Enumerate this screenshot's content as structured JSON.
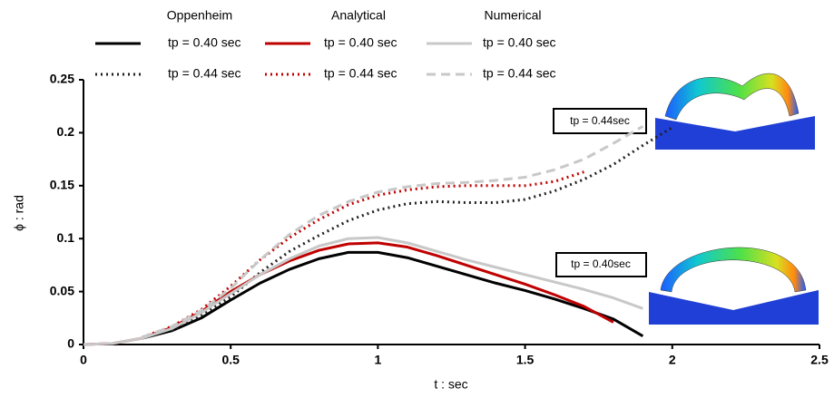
{
  "chart_data": {
    "type": "line",
    "x_label": "t : sec",
    "y_label": "ϕ : rad",
    "legend_columns": [
      "Oppenheim",
      "Analytical",
      "Numerical"
    ],
    "x": [
      0,
      0.1,
      0.2,
      0.3,
      0.4,
      0.5,
      0.6,
      0.7,
      0.8,
      0.9,
      1.0,
      1.1,
      1.2,
      1.3,
      1.4,
      1.5,
      1.6,
      1.7,
      1.8,
      1.9,
      2.0
    ],
    "series": [
      {
        "name": "tp = 0.40 sec",
        "color": "#000000",
        "style": "solid",
        "values": [
          null,
          null,
          0.006,
          0.013,
          0.025,
          0.042,
          0.058,
          0.071,
          0.081,
          0.087,
          0.087,
          0.082,
          0.074,
          0.066,
          0.058,
          0.051,
          0.043,
          0.034,
          0.024,
          0.008,
          null
        ]
      },
      {
        "name": "tp = 0.44 sec",
        "color": "#222222",
        "style": "dotted",
        "values": [
          null,
          null,
          null,
          0.013,
          0.028,
          0.045,
          0.068,
          0.088,
          0.103,
          0.117,
          0.127,
          0.133,
          0.135,
          0.134,
          0.134,
          0.137,
          0.145,
          0.156,
          0.17,
          0.188,
          0.205
        ]
      },
      {
        "name": "tp = 0.40 sec",
        "color": "#c00000",
        "style": "solid",
        "values": [
          0,
          0.001,
          0.006,
          0.016,
          0.031,
          0.05,
          0.066,
          0.079,
          0.089,
          0.095,
          0.096,
          0.092,
          0.084,
          0.075,
          0.066,
          0.057,
          0.047,
          0.036,
          0.021,
          null,
          null
        ]
      },
      {
        "name": "tp = 0.44 sec",
        "color": "#c00000",
        "style": "dotted",
        "values": [
          null,
          null,
          0.007,
          0.017,
          0.033,
          0.055,
          0.08,
          0.101,
          0.118,
          0.132,
          0.141,
          0.146,
          0.149,
          0.15,
          0.15,
          0.15,
          0.154,
          0.163,
          null,
          null,
          null
        ]
      },
      {
        "name": "tp = 0.40 sec",
        "color": "#c8c8c8",
        "style": "solid",
        "values": [
          0,
          0.001,
          0.006,
          0.015,
          0.03,
          0.048,
          0.066,
          0.081,
          0.093,
          0.1,
          0.101,
          0.096,
          0.088,
          0.08,
          0.073,
          0.066,
          0.059,
          0.052,
          0.044,
          0.034,
          null
        ]
      },
      {
        "name": "tp = 0.44 sec",
        "color": "#c8c8c8",
        "style": "dashed",
        "values": [
          null,
          null,
          0.007,
          0.017,
          0.032,
          0.053,
          0.08,
          0.104,
          0.122,
          0.135,
          0.144,
          0.149,
          0.152,
          0.153,
          0.155,
          0.158,
          0.165,
          0.175,
          0.19,
          0.206,
          null
        ]
      }
    ],
    "xlim": [
      0,
      2.5
    ],
    "xticks": [
      0,
      0.5,
      1,
      1.5,
      2,
      2.5
    ],
    "ylim": [
      0,
      0.25
    ],
    "yticks": [
      0,
      0.05,
      0.1,
      0.15,
      0.2,
      0.25
    ],
    "annotations": [
      "tp = 0.44sec",
      "tp = 0.40sec"
    ]
  }
}
